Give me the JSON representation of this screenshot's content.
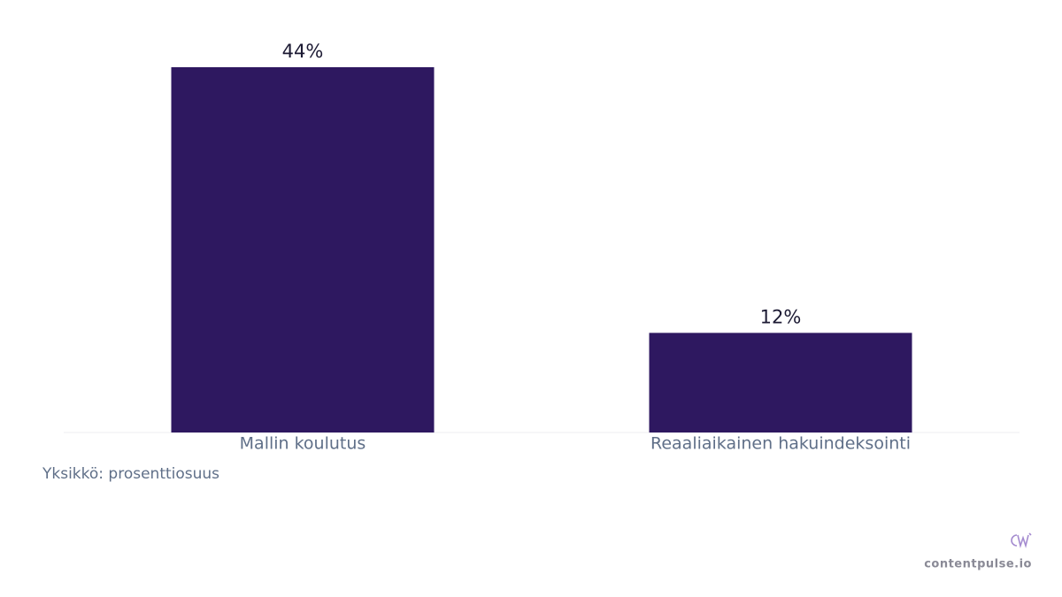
{
  "chart_data": {
    "type": "bar",
    "categories": [
      "Mallin koulutus",
      "Reaaliaikainen hakuindeksointi"
    ],
    "values": [
      44,
      12
    ],
    "value_labels": [
      "44%",
      "12%"
    ],
    "color": "#2e1860",
    "note": "Yksikkö: prosenttiosuus",
    "brand": "contentpulse.io"
  }
}
